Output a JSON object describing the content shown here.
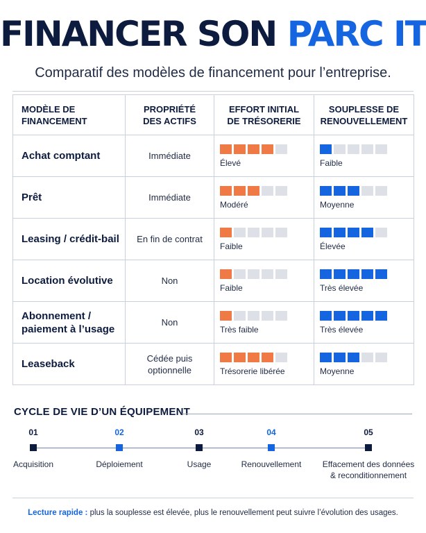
{
  "header": {
    "title_part1": "FINANCER SON",
    "title_part2": "PARC IT",
    "subtitle": "Comparatif des modèles de financement pour l’entreprise."
  },
  "colors": {
    "navy": "#0d1b3e",
    "blue": "#1565e0",
    "orange": "#f07a45",
    "empty": "#dde1e7"
  },
  "table": {
    "headers": {
      "model_line1": "MODÈLE DE",
      "model_line2": "FINANCEMENT",
      "ownership_line1": "PROPRIÉTÉ",
      "ownership_line2": "DES ACTIFS",
      "effort_line1": "EFFORT INITIAL",
      "effort_line2": "DE TRÉSORERIE",
      "flex_line1": "SOUPLESSE DE",
      "flex_line2": "RENOUVELLEMENT"
    },
    "rows": [
      {
        "model_line1": "Achat comptant",
        "model_line2": "",
        "own_line1": "Immédiate",
        "own_line2": "",
        "effort_level": 4,
        "effort_label": "Élevé",
        "flex_level": 1,
        "flex_label": "Faible"
      },
      {
        "model_line1": "Prêt",
        "model_line2": "",
        "own_line1": "Immédiate",
        "own_line2": "",
        "effort_level": 3,
        "effort_label": "Modéré",
        "flex_level": 3,
        "flex_label": "Moyenne"
      },
      {
        "model_line1": "Leasing / crédit-bail",
        "model_line2": "",
        "own_line1": "En fin de contrat",
        "own_line2": "",
        "effort_level": 1,
        "effort_label": "Faible",
        "flex_level": 4,
        "flex_label": "Élevée"
      },
      {
        "model_line1": "Location évolutive",
        "model_line2": "",
        "own_line1": "Non",
        "own_line2": "",
        "effort_level": 1,
        "effort_label": "Faible",
        "flex_level": 5,
        "flex_label": "Très élevée"
      },
      {
        "model_line1": "Abonnement /",
        "model_line2": "paiement à l’usage",
        "own_line1": "Non",
        "own_line2": "",
        "effort_level": 1,
        "effort_label": "Très faible",
        "flex_level": 5,
        "flex_label": "Très élevée"
      },
      {
        "model_line1": "Leaseback",
        "model_line2": "",
        "own_line1": "Cédée puis",
        "own_line2": "optionnelle",
        "effort_level": 4,
        "effort_label": "Trésorerie libérée",
        "flex_level": 3,
        "flex_label": "Moyenne"
      }
    ]
  },
  "cycle": {
    "title": "CYCLE DE VIE D’UN ÉQUIPEMENT",
    "steps": [
      {
        "num": "01",
        "line1": "Acquisition",
        "line2": "",
        "highlight": false
      },
      {
        "num": "02",
        "line1": "Déploiement",
        "line2": "",
        "highlight": true
      },
      {
        "num": "03",
        "line1": "Usage",
        "line2": "",
        "highlight": false
      },
      {
        "num": "04",
        "line1": "Renouvellement",
        "line2": "",
        "highlight": true
      },
      {
        "num": "05",
        "line1": "Effacement des données",
        "line2": "& reconditionnement",
        "highlight": false
      }
    ]
  },
  "note": {
    "lead": "Lecture rapide :",
    "text": " plus la souplesse est élevée, plus le renouvellement peut suivre l’évolution des usages."
  }
}
